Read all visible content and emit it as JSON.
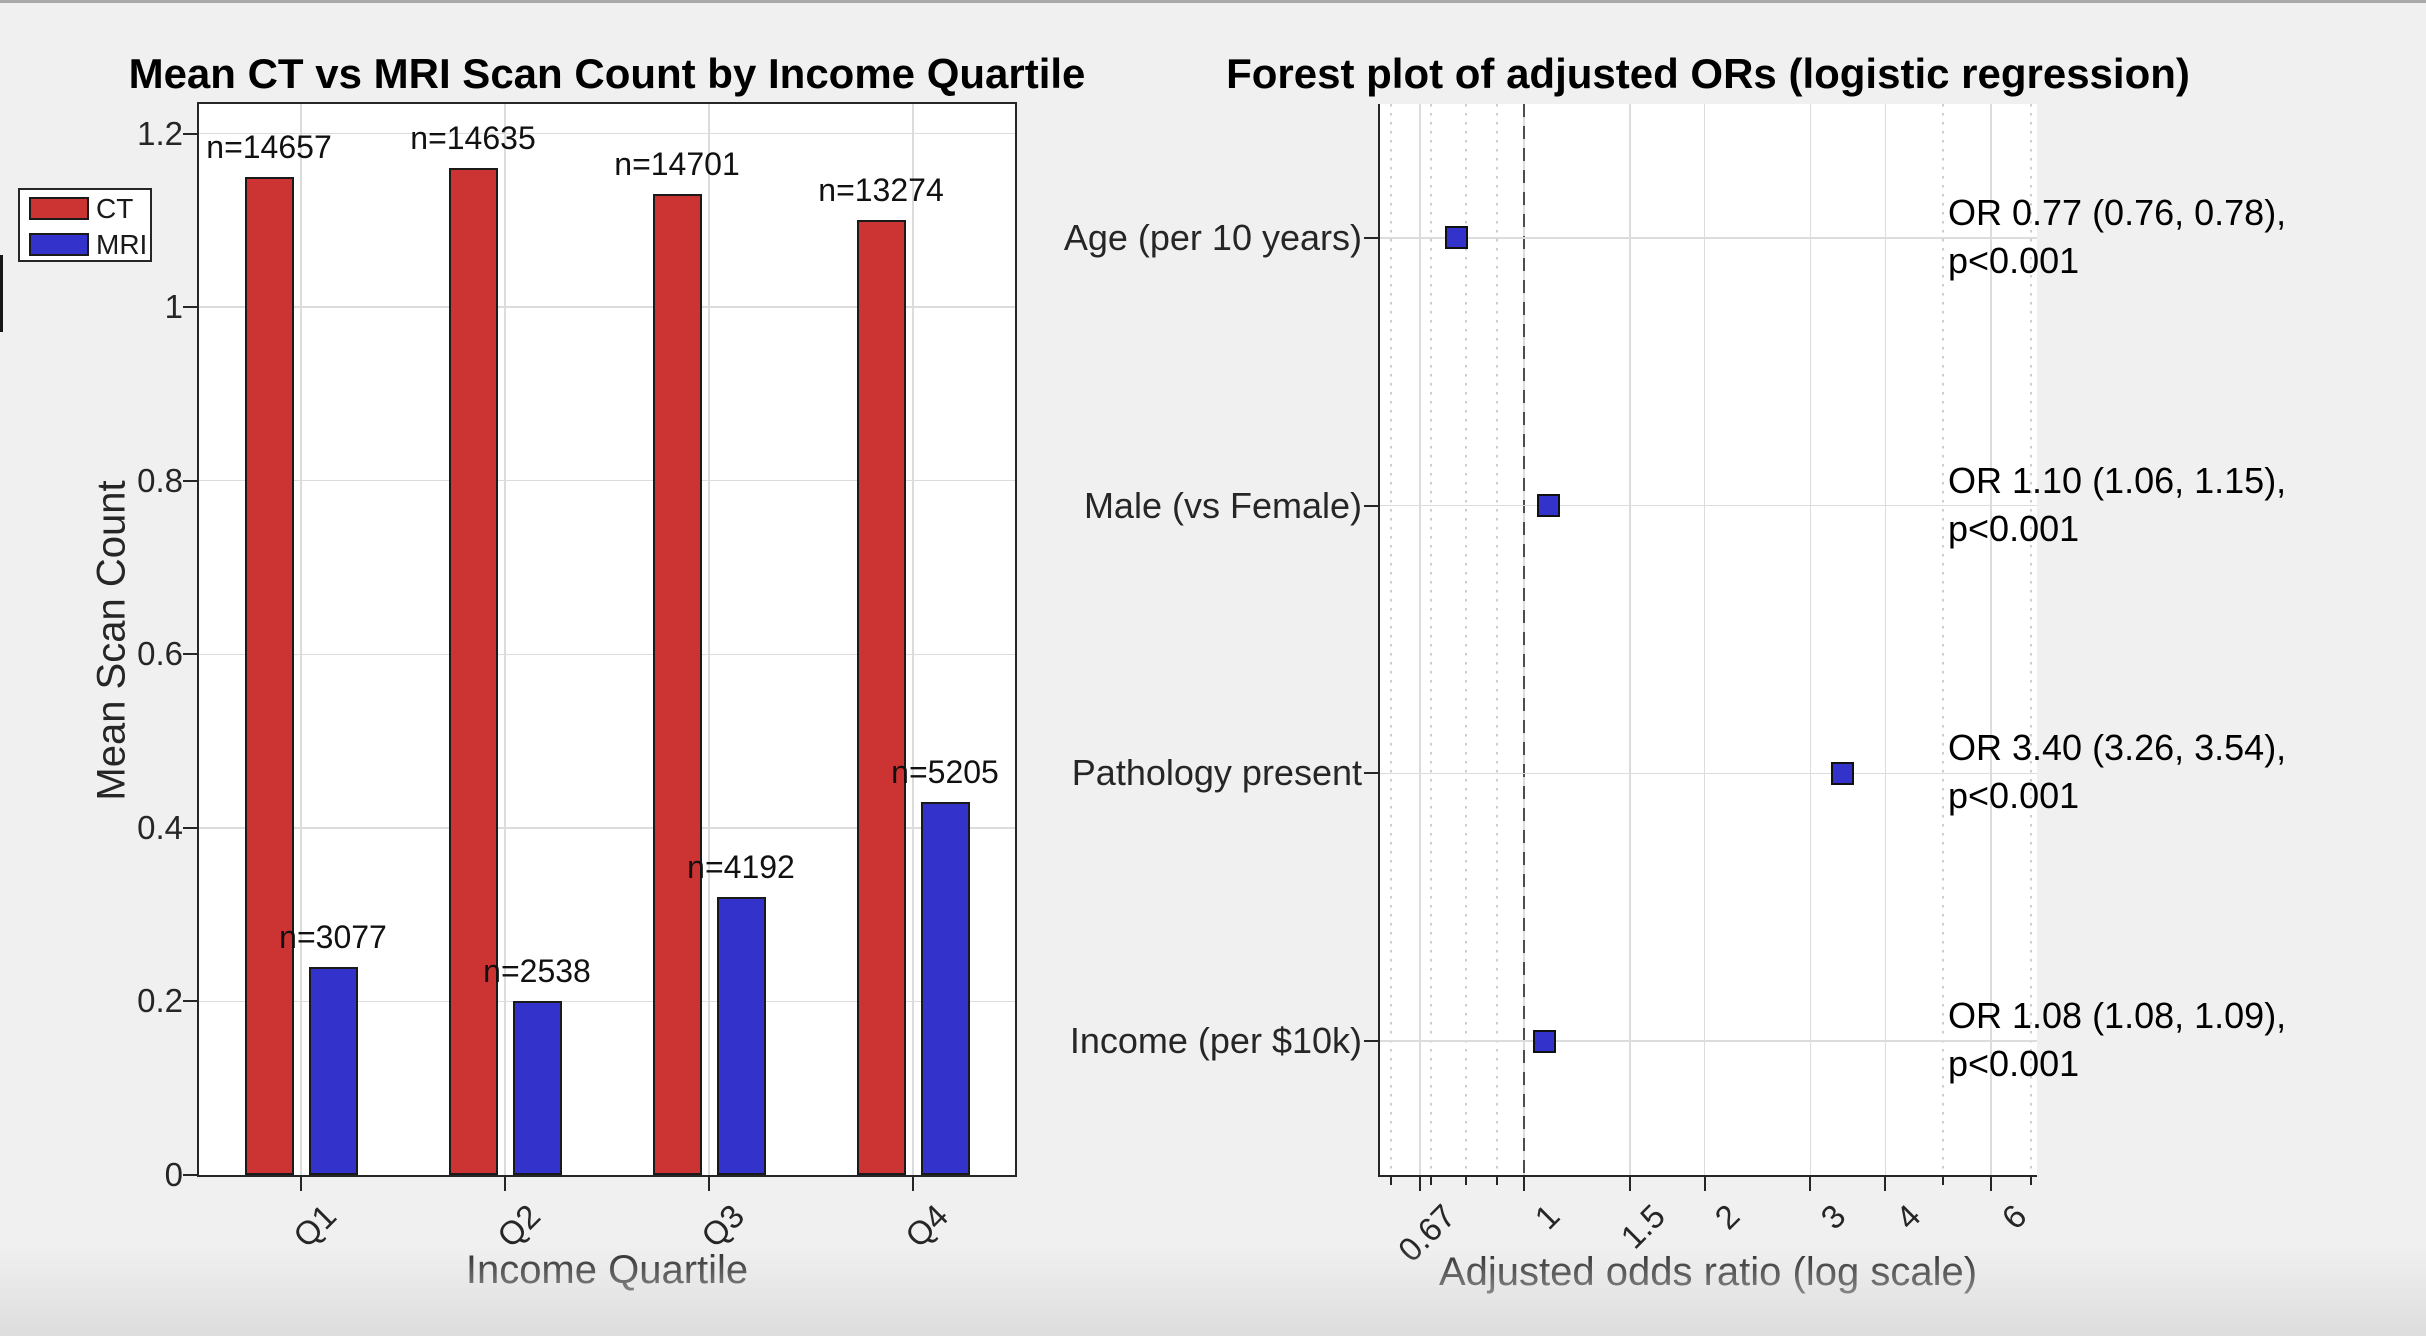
{
  "window": {
    "background": "#f0f0f0",
    "top_strip_color": "#a9a9a9"
  },
  "chart_data": [
    {
      "type": "bar",
      "title": "Mean CT vs MRI Scan Count by Income Quartile",
      "xlabel": "Income Quartile",
      "ylabel": "Mean Scan Count",
      "categories": [
        "Q1",
        "Q2",
        "Q3",
        "Q4"
      ],
      "series": [
        {
          "name": "CT",
          "color": "#cc3333",
          "values": [
            1.15,
            1.16,
            1.13,
            1.1
          ],
          "bar_labels": [
            "n=14657",
            "n=14635",
            "n=14701",
            "n=13274"
          ]
        },
        {
          "name": "MRI",
          "color": "#3333cc",
          "values": [
            0.24,
            0.2,
            0.32,
            0.43
          ],
          "bar_labels": [
            "n=3077",
            "n=2538",
            "n=4192",
            "n=5205"
          ]
        }
      ],
      "ylim": [
        0,
        1.234
      ],
      "yticks": [
        0,
        0.2,
        0.4,
        0.6,
        0.8,
        1,
        1.2
      ],
      "ytick_labels": [
        "0",
        "0.2",
        "0.4",
        "0.6",
        "0.8",
        "1",
        "1.2"
      ],
      "grid": true,
      "legend": {
        "position": "outside-upper-left",
        "entries": [
          "CT",
          "MRI"
        ]
      }
    },
    {
      "type": "scatter",
      "subtype": "forest-plot",
      "title": "Forest plot of adjusted ORs (logistic regression)",
      "xlabel": "Adjusted odds ratio (log scale)",
      "xscale": "log",
      "xlim": [
        0.575,
        7.16
      ],
      "xticks": [
        0.67,
        1,
        1.5,
        2,
        3,
        4,
        6
      ],
      "xtick_labels": [
        "0.67",
        "1",
        "1.5",
        "2",
        "3",
        "4",
        "6"
      ],
      "minor_xticks": [
        0.6,
        0.7,
        0.8,
        0.9,
        5,
        7
      ],
      "reference_line": 1,
      "marker_color": "#3333cc",
      "grid": true,
      "rows": [
        {
          "label": "Age (per 10 years)",
          "or": 0.77,
          "ci": [
            0.76,
            0.78
          ],
          "annotation_line1": "OR 0.77 (0.76, 0.78),",
          "annotation_line2": "p<0.001"
        },
        {
          "label": "Male (vs Female)",
          "or": 1.1,
          "ci": [
            1.06,
            1.15
          ],
          "annotation_line1": "OR 1.10 (1.06, 1.15),",
          "annotation_line2": "p<0.001"
        },
        {
          "label": "Pathology present",
          "or": 3.4,
          "ci": [
            3.26,
            3.54
          ],
          "annotation_line1": "OR 3.40 (3.26, 3.54),",
          "annotation_line2": "p<0.001"
        },
        {
          "label": "Income (per $10k)",
          "or": 1.08,
          "ci": [
            1.08,
            1.09
          ],
          "annotation_line1": "OR 1.08 (1.08, 1.09),",
          "annotation_line2": "p<0.001"
        }
      ]
    }
  ]
}
